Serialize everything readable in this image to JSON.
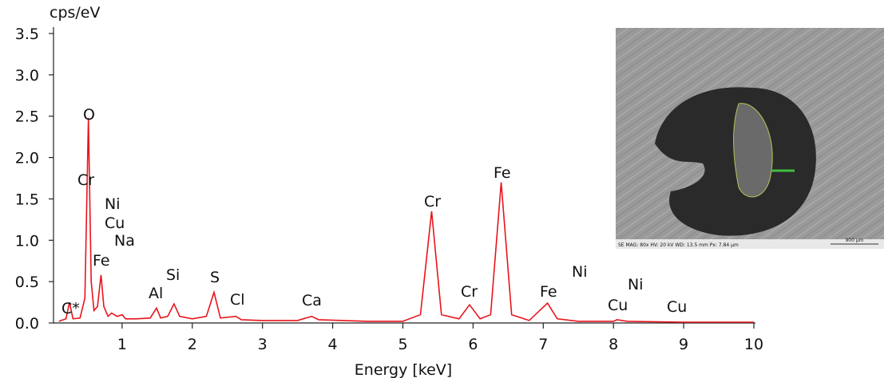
{
  "chart_data": {
    "type": "line",
    "y_axis_label": "cps/eV",
    "x_axis_label": "Energy [keV]",
    "color": "#e8141c",
    "x": [
      0.1,
      0.2,
      0.25,
      0.3,
      0.4,
      0.47,
      0.52,
      0.56,
      0.6,
      0.65,
      0.7,
      0.74,
      0.8,
      0.85,
      0.93,
      1.0,
      1.05,
      1.2,
      1.4,
      1.49,
      1.55,
      1.65,
      1.74,
      1.82,
      2.0,
      2.2,
      2.31,
      2.4,
      2.62,
      2.7,
      3.0,
      3.5,
      3.7,
      3.8,
      4.5,
      5.0,
      5.25,
      5.41,
      5.55,
      5.8,
      5.95,
      6.1,
      6.25,
      6.4,
      6.55,
      6.8,
      7.06,
      7.2,
      7.5,
      8.0,
      8.05,
      8.2,
      9.0,
      10.0
    ],
    "values": [
      0.02,
      0.05,
      0.25,
      0.05,
      0.06,
      0.3,
      2.48,
      0.5,
      0.15,
      0.2,
      0.58,
      0.2,
      0.08,
      0.12,
      0.08,
      0.1,
      0.05,
      0.05,
      0.06,
      0.18,
      0.06,
      0.08,
      0.23,
      0.08,
      0.05,
      0.08,
      0.37,
      0.06,
      0.08,
      0.04,
      0.03,
      0.03,
      0.08,
      0.04,
      0.02,
      0.02,
      0.1,
      1.35,
      0.1,
      0.05,
      0.22,
      0.05,
      0.1,
      1.7,
      0.1,
      0.03,
      0.24,
      0.05,
      0.02,
      0.02,
      0.04,
      0.02,
      0.01,
      0.01
    ],
    "xlim": [
      0,
      10
    ],
    "xticks": [
      1,
      2,
      3,
      4,
      5,
      6,
      7,
      8,
      9,
      10
    ],
    "ylim": [
      0,
      3.5
    ],
    "yticks": [
      {
        "value": 0,
        "label": "0.0"
      },
      {
        "value": 0.5,
        "label": "0.5"
      },
      {
        "value": 1,
        "label": "1.0"
      },
      {
        "value": 1.5,
        "label": "1.5"
      },
      {
        "value": 2,
        "label": "2.0"
      },
      {
        "value": 2.5,
        "label": "2.5"
      },
      {
        "value": 3,
        "label": "3.0"
      },
      {
        "value": 3.5,
        "label": "3.5"
      }
    ],
    "annotations": [
      "O",
      "Cr",
      "Ni",
      "Cu",
      "Na",
      "Fe",
      "C*",
      "Al",
      "Si",
      "S",
      "Cl",
      "Ca",
      "Cr",
      "Fe",
      "Cr",
      "Fe",
      "Ni",
      "Ni",
      "Cu",
      "Cu"
    ],
    "inset": {
      "caption": "SE   MAG: 80x   HV: 20 kV   WD: 13.5 mm   Px: 7.84 µm",
      "scale_bar": "900 µm"
    }
  }
}
